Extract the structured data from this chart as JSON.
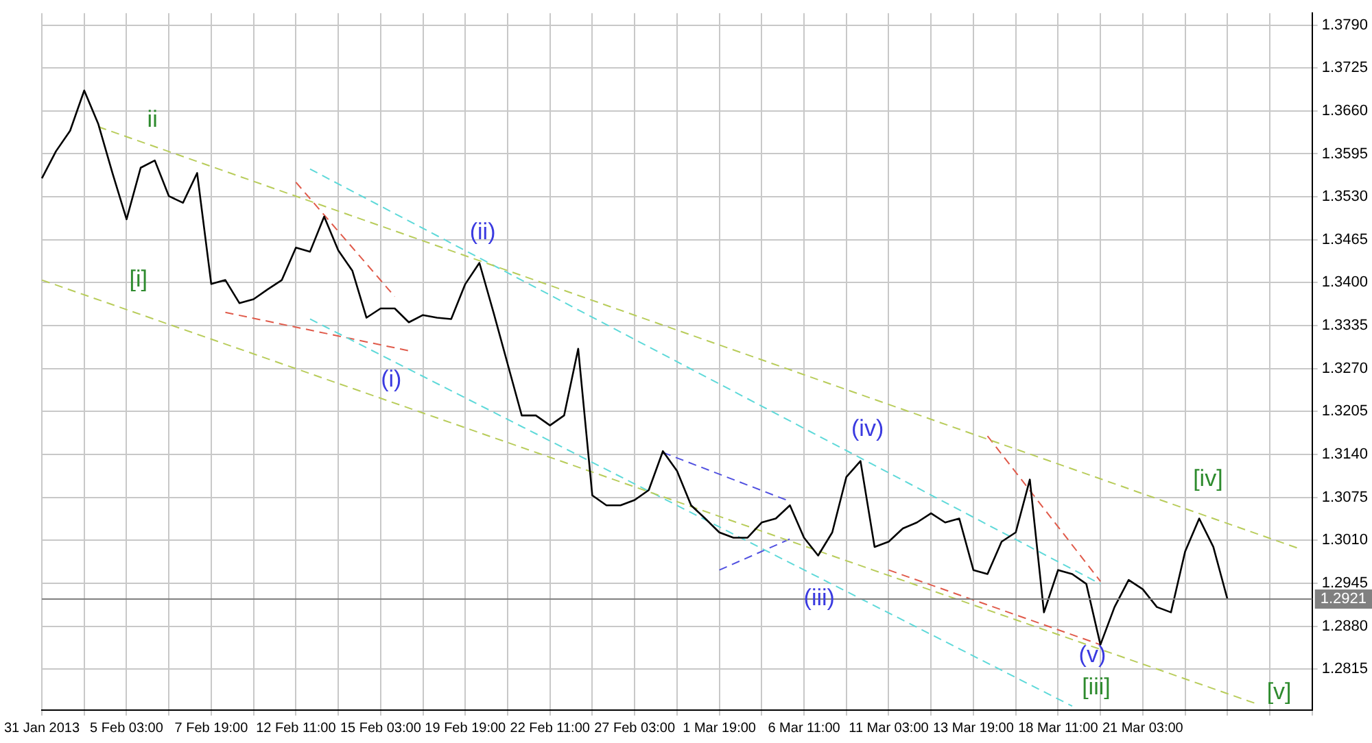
{
  "chart_data": {
    "type": "line",
    "categories": [
      "31 Jan 2013",
      null,
      null,
      null,
      null,
      null,
      "5 Feb 03:00",
      null,
      null,
      null,
      null,
      null,
      "7 Feb 19:00",
      null,
      null,
      null,
      null,
      null,
      "12 Feb 11:00",
      null,
      null,
      null,
      null,
      null,
      "15 Feb 03:00",
      null,
      null,
      null,
      null,
      null,
      "19 Feb 19:00",
      null,
      null,
      null,
      null,
      null,
      "22 Feb 11:00",
      null,
      null,
      null,
      null,
      null,
      "27 Feb 03:00",
      null,
      null,
      null,
      null,
      null,
      "1 Mar 19:00",
      null,
      null,
      null,
      null,
      null,
      "6 Mar 11:00",
      null,
      null,
      null,
      null,
      null,
      "11 Mar 03:00",
      null,
      null,
      null,
      null,
      null,
      "13 Mar 19:00",
      null,
      null,
      null,
      null,
      null,
      "18 Mar 11:00",
      null,
      null,
      null,
      null,
      null,
      "21 Mar 03:00",
      null,
      null,
      null,
      null,
      null,
      null,
      null,
      null,
      null,
      null,
      null,
      null
    ],
    "ylim": [
      1.2753,
      1.3808
    ],
    "yticks": [
      {
        "value": 1.2815,
        "label": "1.2815"
      },
      {
        "value": 1.288,
        "label": "1.2880"
      },
      {
        "value": 1.2945,
        "label": "1.2945"
      },
      {
        "value": 1.301,
        "label": "1.3010"
      },
      {
        "value": 1.3075,
        "label": "1.3075"
      },
      {
        "value": 1.314,
        "label": "1.3140"
      },
      {
        "value": 1.3205,
        "label": "1.3205"
      },
      {
        "value": 1.327,
        "label": "1.3270"
      },
      {
        "value": 1.3335,
        "label": "1.3335"
      },
      {
        "value": 1.34,
        "label": "1.3400"
      },
      {
        "value": 1.3465,
        "label": "1.3465"
      },
      {
        "value": 1.353,
        "label": "1.3530"
      },
      {
        "value": 1.3595,
        "label": "1.3595"
      },
      {
        "value": 1.366,
        "label": "1.3660"
      },
      {
        "value": 1.3725,
        "label": "1.3725"
      },
      {
        "value": 1.379,
        "label": "1.3790"
      }
    ],
    "grid": true,
    "legend": false,
    "marker": "none",
    "series": [
      {
        "color": "#000000",
        "line_style": "solid",
        "values": [
          1.3558,
          1.3599,
          1.363,
          1.3691,
          1.364,
          1.3566,
          1.3496,
          1.3574,
          1.3585,
          1.3531,
          1.3521,
          1.3566,
          1.3398,
          1.3404,
          1.3369,
          1.3375,
          1.339,
          1.3404,
          1.3453,
          1.3447,
          1.35,
          1.3449,
          1.3418,
          1.3347,
          1.3361,
          1.3361,
          1.334,
          1.3351,
          1.3347,
          1.3345,
          1.3398,
          1.343,
          1.3355,
          1.3277,
          1.3199,
          1.3199,
          1.3184,
          1.3199,
          1.33,
          1.3078,
          1.3063,
          1.3063,
          1.3071,
          1.3086,
          1.3145,
          1.3115,
          1.3063,
          1.3043,
          1.3022,
          1.3014,
          1.3014,
          1.3037,
          1.3043,
          1.3063,
          1.3014,
          1.2987,
          1.3022,
          1.3106,
          1.313,
          1.3,
          1.3008,
          1.3028,
          1.3037,
          1.3051,
          1.3037,
          1.3043,
          1.2965,
          1.2959,
          1.3008,
          1.3022,
          1.3102,
          1.2901,
          1.2965,
          1.2959,
          1.2944,
          1.2852,
          1.2909,
          1.295,
          1.2936,
          1.2909,
          1.2901,
          1.2993,
          1.3043,
          1.3,
          1.2921,
          null,
          null,
          null,
          null,
          null,
          null
        ]
      },
      {
        "color": "#b8cc5a",
        "line_style": "dashed",
        "values": [
          null,
          null,
          null,
          null,
          1.3636,
          null,
          null,
          null,
          null,
          null,
          null,
          null,
          null,
          null,
          null,
          null,
          null,
          null,
          null,
          null,
          null,
          null,
          null,
          null,
          null,
          null,
          null,
          null,
          null,
          null,
          null,
          null,
          null,
          null,
          null,
          null,
          null,
          null,
          null,
          null,
          null,
          null,
          null,
          null,
          null,
          null,
          null,
          null,
          null,
          null,
          null,
          null,
          null,
          null,
          null,
          null,
          null,
          null,
          null,
          null,
          null,
          null,
          null,
          null,
          null,
          null,
          null,
          null,
          null,
          null,
          null,
          null,
          null,
          null,
          null,
          null,
          null,
          null,
          null,
          null,
          null,
          null,
          null,
          null,
          null,
          null,
          null,
          null,
          null,
          1.2998,
          null
        ]
      },
      {
        "color": "#b8cc5a",
        "line_style": "dashed",
        "values": [
          1.3404,
          null,
          null,
          null,
          null,
          null,
          null,
          null,
          null,
          null,
          null,
          null,
          null,
          null,
          null,
          null,
          null,
          null,
          null,
          null,
          null,
          null,
          null,
          null,
          null,
          null,
          null,
          null,
          null,
          null,
          null,
          null,
          null,
          null,
          null,
          null,
          null,
          null,
          null,
          null,
          null,
          null,
          null,
          null,
          null,
          null,
          null,
          null,
          null,
          null,
          null,
          null,
          null,
          null,
          null,
          null,
          null,
          null,
          null,
          null,
          null,
          null,
          null,
          null,
          null,
          null,
          null,
          null,
          null,
          null,
          null,
          null,
          null,
          null,
          null,
          null,
          null,
          null,
          null,
          null,
          null,
          null,
          null,
          null,
          null,
          null,
          1.2763,
          null,
          null,
          null,
          null
        ]
      },
      {
        "color": "#5ed9d9",
        "line_style": "dashed",
        "values": [
          null,
          null,
          null,
          null,
          null,
          null,
          null,
          null,
          null,
          null,
          null,
          null,
          null,
          null,
          null,
          null,
          null,
          null,
          null,
          1.3572,
          null,
          null,
          null,
          null,
          null,
          null,
          null,
          null,
          null,
          null,
          null,
          null,
          null,
          null,
          null,
          null,
          null,
          null,
          null,
          null,
          null,
          null,
          null,
          null,
          null,
          null,
          null,
          null,
          null,
          null,
          null,
          null,
          null,
          null,
          null,
          null,
          null,
          null,
          null,
          null,
          null,
          null,
          null,
          null,
          null,
          null,
          null,
          null,
          null,
          null,
          null,
          null,
          null,
          null,
          null,
          1.2944,
          null,
          null,
          null,
          null,
          null,
          null,
          null,
          null,
          null,
          null,
          null,
          null,
          null,
          null,
          null
        ]
      },
      {
        "color": "#5ed9d9",
        "line_style": "dashed",
        "values": [
          null,
          null,
          null,
          null,
          null,
          null,
          null,
          null,
          null,
          null,
          null,
          null,
          null,
          null,
          null,
          null,
          null,
          null,
          null,
          1.3345,
          null,
          null,
          null,
          null,
          null,
          null,
          null,
          null,
          null,
          null,
          null,
          null,
          null,
          null,
          null,
          null,
          null,
          null,
          null,
          null,
          null,
          null,
          null,
          null,
          null,
          null,
          null,
          null,
          null,
          null,
          null,
          null,
          null,
          null,
          null,
          null,
          null,
          null,
          null,
          null,
          null,
          null,
          null,
          null,
          null,
          null,
          null,
          null,
          null,
          null,
          null,
          null,
          null,
          1.2759,
          null,
          null,
          null,
          null,
          null,
          null,
          null,
          null,
          null,
          null,
          null,
          null,
          null,
          null,
          null,
          null,
          null
        ]
      },
      {
        "color": "#e05a4a",
        "line_style": "dashed",
        "values": [
          null,
          null,
          null,
          null,
          null,
          null,
          null,
          null,
          null,
          null,
          null,
          null,
          null,
          null,
          null,
          null,
          null,
          null,
          1.3552,
          null,
          null,
          null,
          null,
          null,
          null,
          1.3379,
          null,
          null,
          null,
          null,
          null,
          null,
          null,
          null,
          null,
          null,
          null,
          null,
          null,
          null,
          null,
          null,
          null,
          null,
          null,
          null,
          null,
          null,
          null,
          null,
          null,
          null,
          null,
          null,
          null,
          null,
          null,
          null,
          null,
          null,
          null,
          null,
          null,
          null,
          null,
          null,
          null,
          null,
          null,
          null,
          null,
          null,
          null,
          null,
          null,
          null,
          null,
          null,
          null,
          null,
          null,
          null,
          null,
          null,
          null,
          null,
          null,
          null,
          null,
          null,
          null
        ]
      },
      {
        "color": "#e05a4a",
        "line_style": "dashed",
        "values": [
          null,
          null,
          null,
          null,
          null,
          null,
          null,
          null,
          null,
          null,
          null,
          null,
          null,
          1.3355,
          null,
          null,
          null,
          null,
          null,
          null,
          null,
          null,
          null,
          null,
          null,
          null,
          1.3297,
          null,
          null,
          null,
          null,
          null,
          null,
          null,
          null,
          null,
          null,
          null,
          null,
          null,
          null,
          null,
          null,
          null,
          null,
          null,
          null,
          null,
          null,
          null,
          null,
          null,
          null,
          null,
          null,
          null,
          null,
          null,
          null,
          null,
          null,
          null,
          null,
          null,
          null,
          null,
          null,
          null,
          null,
          null,
          null,
          null,
          null,
          null,
          null,
          null,
          null,
          null,
          null,
          null,
          null,
          null,
          null,
          null,
          null,
          null,
          null,
          null,
          null,
          null,
          null
        ]
      },
      {
        "color": "#5050e0",
        "line_style": "dashed",
        "values": [
          null,
          null,
          null,
          null,
          null,
          null,
          null,
          null,
          null,
          null,
          null,
          null,
          null,
          null,
          null,
          null,
          null,
          null,
          null,
          null,
          null,
          null,
          null,
          null,
          null,
          null,
          null,
          null,
          null,
          null,
          null,
          null,
          null,
          null,
          null,
          null,
          null,
          null,
          null,
          null,
          null,
          null,
          null,
          null,
          1.3143,
          null,
          null,
          null,
          null,
          null,
          null,
          null,
          null,
          1.3069,
          null,
          null,
          null,
          null,
          null,
          null,
          null,
          null,
          null,
          null,
          null,
          null,
          null,
          null,
          null,
          null,
          null,
          null,
          null,
          null,
          null,
          null,
          null,
          null,
          null,
          null,
          null,
          null,
          null,
          null,
          null,
          null,
          null,
          null,
          null,
          null,
          null
        ]
      },
      {
        "color": "#5050e0",
        "line_style": "dashed",
        "values": [
          null,
          null,
          null,
          null,
          null,
          null,
          null,
          null,
          null,
          null,
          null,
          null,
          null,
          null,
          null,
          null,
          null,
          null,
          null,
          null,
          null,
          null,
          null,
          null,
          null,
          null,
          null,
          null,
          null,
          null,
          null,
          null,
          null,
          null,
          null,
          null,
          null,
          null,
          null,
          null,
          null,
          null,
          null,
          null,
          null,
          null,
          null,
          null,
          1.2965,
          null,
          null,
          null,
          null,
          1.3012,
          null,
          null,
          null,
          null,
          null,
          null,
          null,
          null,
          null,
          null,
          null,
          null,
          null,
          null,
          null,
          null,
          null,
          null,
          null,
          null,
          null,
          null,
          null,
          null,
          null,
          null,
          null,
          null,
          null,
          null,
          null,
          null,
          null,
          null,
          null,
          null,
          null
        ]
      },
      {
        "color": "#e05a4a",
        "line_style": "dashed",
        "values": [
          null,
          null,
          null,
          null,
          null,
          null,
          null,
          null,
          null,
          null,
          null,
          null,
          null,
          null,
          null,
          null,
          null,
          null,
          null,
          null,
          null,
          null,
          null,
          null,
          null,
          null,
          null,
          null,
          null,
          null,
          null,
          null,
          null,
          null,
          null,
          null,
          null,
          null,
          null,
          null,
          null,
          null,
          null,
          null,
          null,
          null,
          null,
          null,
          null,
          null,
          null,
          null,
          null,
          null,
          null,
          null,
          null,
          null,
          null,
          null,
          1.2965,
          null,
          null,
          null,
          null,
          null,
          null,
          null,
          null,
          null,
          null,
          null,
          null,
          null,
          null,
          1.2852,
          null,
          null,
          null,
          null,
          null,
          null,
          null,
          null,
          null,
          null,
          null,
          null,
          null,
          null,
          null
        ]
      },
      {
        "color": "#e05a4a",
        "line_style": "dashed",
        "values": [
          null,
          null,
          null,
          null,
          null,
          null,
          null,
          null,
          null,
          null,
          null,
          null,
          null,
          null,
          null,
          null,
          null,
          null,
          null,
          null,
          null,
          null,
          null,
          null,
          null,
          null,
          null,
          null,
          null,
          null,
          null,
          null,
          null,
          null,
          null,
          null,
          null,
          null,
          null,
          null,
          null,
          null,
          null,
          null,
          null,
          null,
          null,
          null,
          null,
          null,
          null,
          null,
          null,
          null,
          null,
          null,
          null,
          null,
          null,
          null,
          null,
          null,
          null,
          null,
          null,
          null,
          null,
          1.3168,
          null,
          null,
          null,
          null,
          null,
          null,
          null,
          1.2948,
          null,
          null,
          null,
          null,
          null,
          null,
          null,
          null,
          null,
          null,
          null,
          null,
          null,
          null,
          null
        ]
      }
    ],
    "ref_lines": [
      {
        "axis": "y",
        "value": 1.2921,
        "label": "1.2921",
        "color": "#808080"
      }
    ],
    "annotations": [
      "ii",
      "[i]",
      "(ii)",
      "(i)",
      "(iv)",
      "(iii)",
      "(v)",
      "[iii]",
      "[iv]",
      "[v]"
    ]
  }
}
